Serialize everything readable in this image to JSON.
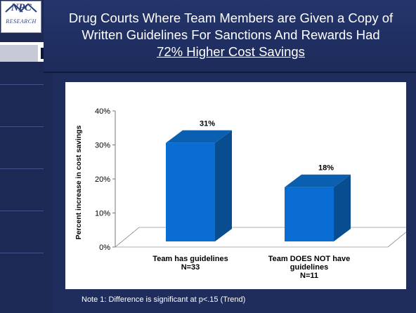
{
  "slide": {
    "title_line1": "Drug Courts Where Team Members are Given a Copy of",
    "title_line2": "Written Guidelines For Sanctions And Rewards Had",
    "title_line3": "72% Higher Cost Savings",
    "logo_text": "NPC",
    "logo_sub": "RESEARCH",
    "note": "Note 1: Difference is significant at p<.15 (Trend)"
  },
  "colors": {
    "bar_front": "#0a6dd4",
    "bar_side": "#084d8f",
    "bar_top": "#0b5fb0"
  },
  "chart_data": {
    "type": "bar",
    "ylabel": "Percent increase in cost savings",
    "ylim": [
      0,
      40
    ],
    "yticks": [
      "0%",
      "10%",
      "20%",
      "30%",
      "40%"
    ],
    "categories": [
      {
        "line1": "Team has guidelines",
        "line2": "N=33",
        "line3": ""
      },
      {
        "line1": "Team DOES NOT have",
        "line2": "guidelines",
        "line3": "N=11"
      }
    ],
    "values": [
      31,
      18
    ],
    "data_labels": [
      "31%",
      "18%"
    ]
  }
}
